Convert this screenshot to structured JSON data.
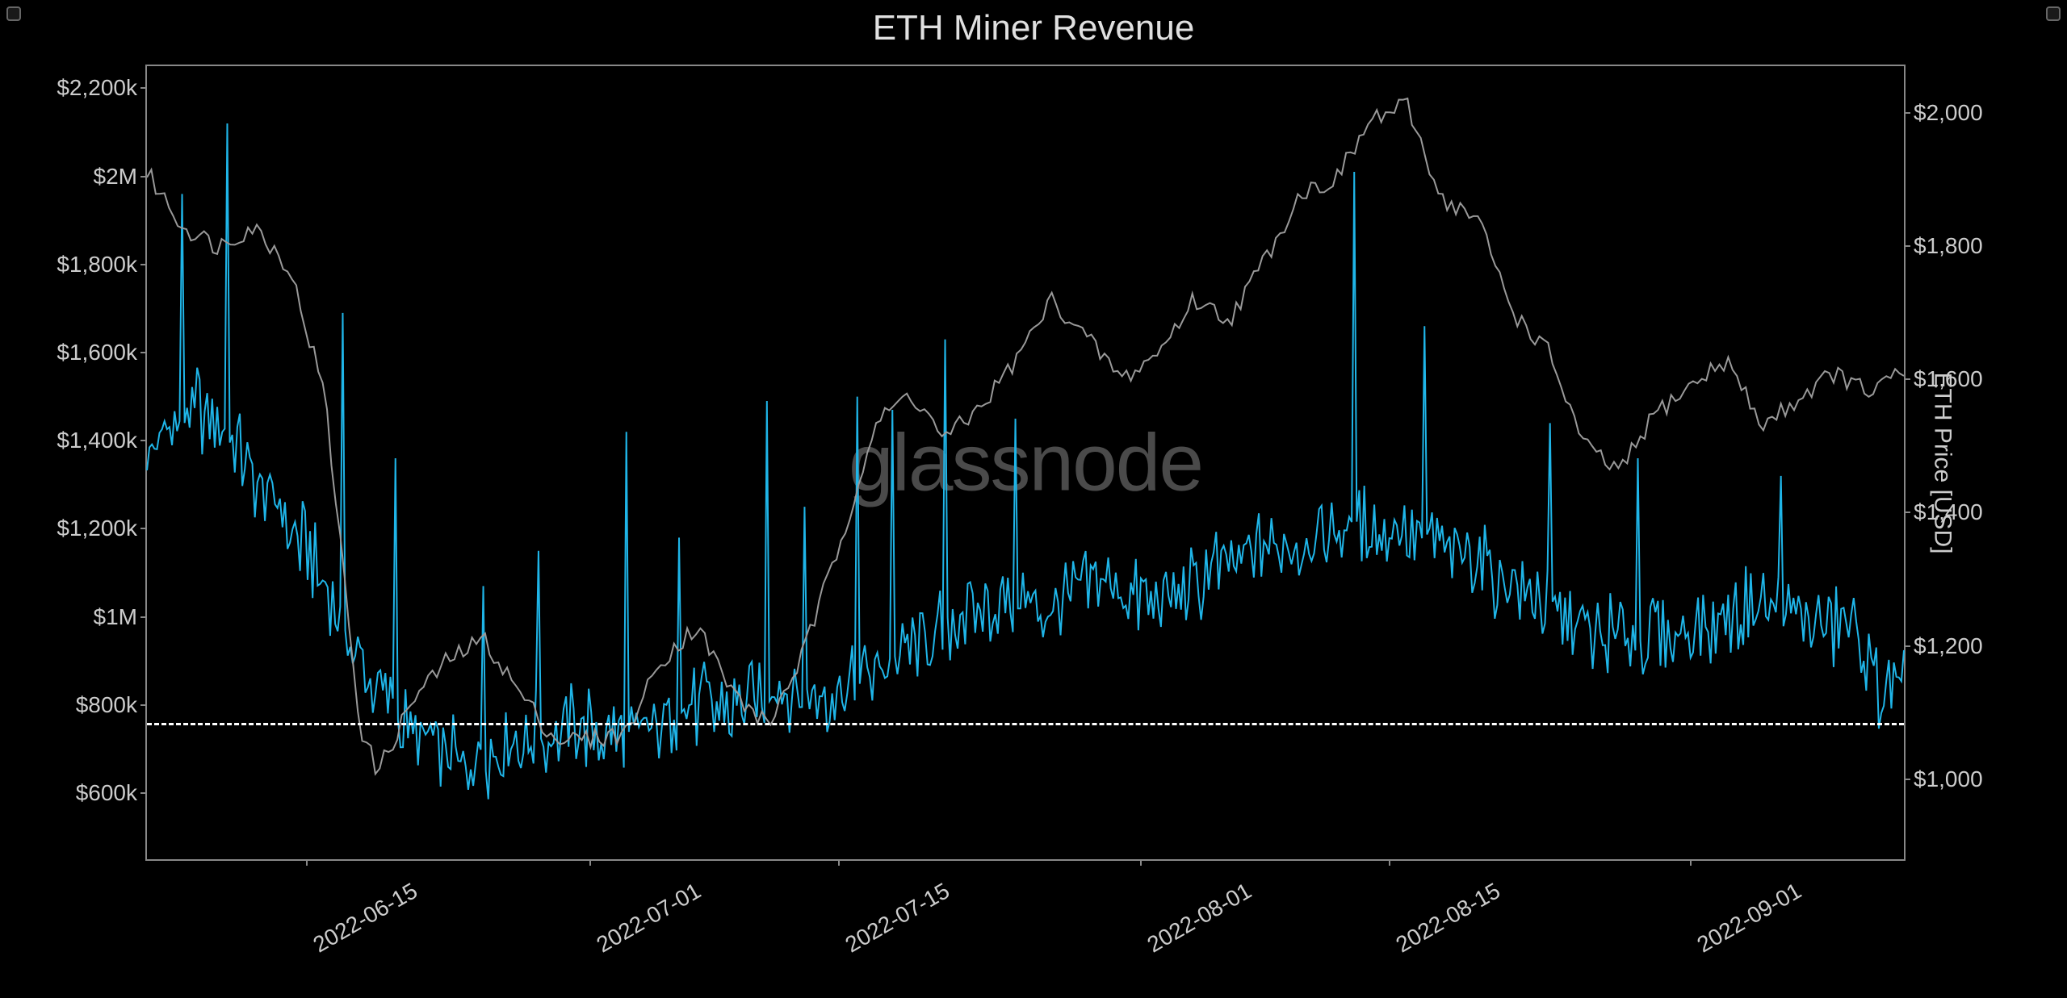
{
  "chart": {
    "title": "ETH Miner Revenue",
    "watermark": "glassnode",
    "background_color": "#000000",
    "plot_border_color": "#888888",
    "text_color": "#cccccc",
    "title_fontsize": 44,
    "label_fontsize": 28,
    "axis_title_fontsize": 30,
    "y_left": {
      "min": 450,
      "max": 2250,
      "ticks": [
        {
          "v": 600,
          "label": "$600k"
        },
        {
          "v": 800,
          "label": "$800k"
        },
        {
          "v": 1000,
          "label": "$1M"
        },
        {
          "v": 1200,
          "label": "$1,200k"
        },
        {
          "v": 1400,
          "label": "$1,400k"
        },
        {
          "v": 1600,
          "label": "$1,600k"
        },
        {
          "v": 1800,
          "label": "$1,800k"
        },
        {
          "v": 2000,
          "label": "$2M"
        },
        {
          "v": 2200,
          "label": "$2,200k"
        }
      ]
    },
    "y_right": {
      "title": "ETH Price [USD]",
      "min": 880,
      "max": 2070,
      "ticks": [
        {
          "v": 1000,
          "label": "$1,000"
        },
        {
          "v": 1200,
          "label": "$1,200"
        },
        {
          "v": 1400,
          "label": "$1,400"
        },
        {
          "v": 1600,
          "label": "$1,600"
        },
        {
          "v": 1800,
          "label": "$1,800"
        },
        {
          "v": 2000,
          "label": "$2,000"
        }
      ]
    },
    "x": {
      "min": 0,
      "max": 99,
      "ticks": [
        {
          "v": 9,
          "label": "2022-06-15"
        },
        {
          "v": 25,
          "label": "2022-07-01"
        },
        {
          "v": 39,
          "label": "2022-07-15"
        },
        {
          "v": 56,
          "label": "2022-08-01"
        },
        {
          "v": 70,
          "label": "2022-08-15"
        },
        {
          "v": 87,
          "label": "2022-09-01"
        }
      ]
    },
    "reference_line": {
      "value": 760,
      "color": "#ffffff",
      "dash": "6,6"
    },
    "series_revenue": {
      "color": "#1fb5e8",
      "line_width": 2,
      "noise_amp": 150,
      "spikes": [
        {
          "x": 2,
          "v": 1960
        },
        {
          "x": 4.5,
          "v": 2120
        },
        {
          "x": 11,
          "v": 1690
        },
        {
          "x": 14,
          "v": 1360
        },
        {
          "x": 19,
          "v": 1070
        },
        {
          "x": 22,
          "v": 1150
        },
        {
          "x": 27,
          "v": 1420
        },
        {
          "x": 30,
          "v": 1180
        },
        {
          "x": 35,
          "v": 1490
        },
        {
          "x": 37,
          "v": 1250
        },
        {
          "x": 40,
          "v": 1500
        },
        {
          "x": 42,
          "v": 1470
        },
        {
          "x": 45,
          "v": 1630
        },
        {
          "x": 49,
          "v": 1450
        },
        {
          "x": 68,
          "v": 2010
        },
        {
          "x": 72,
          "v": 1660
        },
        {
          "x": 79,
          "v": 1440
        },
        {
          "x": 84,
          "v": 1360
        },
        {
          "x": 92,
          "v": 1320
        }
      ],
      "baseline": [
        {
          "x": 0,
          "v": 1380
        },
        {
          "x": 3,
          "v": 1480
        },
        {
          "x": 6,
          "v": 1330
        },
        {
          "x": 9,
          "v": 1150
        },
        {
          "x": 12,
          "v": 900
        },
        {
          "x": 15,
          "v": 720
        },
        {
          "x": 18,
          "v": 660
        },
        {
          "x": 21,
          "v": 720
        },
        {
          "x": 24,
          "v": 760
        },
        {
          "x": 27,
          "v": 720
        },
        {
          "x": 30,
          "v": 800
        },
        {
          "x": 33,
          "v": 780
        },
        {
          "x": 36,
          "v": 850
        },
        {
          "x": 39,
          "v": 820
        },
        {
          "x": 42,
          "v": 900
        },
        {
          "x": 45,
          "v": 980
        },
        {
          "x": 48,
          "v": 1050
        },
        {
          "x": 51,
          "v": 1020
        },
        {
          "x": 54,
          "v": 1080
        },
        {
          "x": 57,
          "v": 1020
        },
        {
          "x": 60,
          "v": 1100
        },
        {
          "x": 63,
          "v": 1150
        },
        {
          "x": 66,
          "v": 1180
        },
        {
          "x": 69,
          "v": 1200
        },
        {
          "x": 72,
          "v": 1180
        },
        {
          "x": 75,
          "v": 1130
        },
        {
          "x": 78,
          "v": 1050
        },
        {
          "x": 81,
          "v": 980
        },
        {
          "x": 84,
          "v": 950
        },
        {
          "x": 87,
          "v": 960
        },
        {
          "x": 90,
          "v": 1020
        },
        {
          "x": 93,
          "v": 1000
        },
        {
          "x": 96,
          "v": 960
        },
        {
          "x": 98,
          "v": 820
        }
      ]
    },
    "series_price": {
      "color": "#999999",
      "line_width": 2,
      "points": [
        {
          "x": 0,
          "v": 1910
        },
        {
          "x": 2,
          "v": 1830
        },
        {
          "x": 4,
          "v": 1800
        },
        {
          "x": 6,
          "v": 1830
        },
        {
          "x": 8,
          "v": 1770
        },
        {
          "x": 10,
          "v": 1580
        },
        {
          "x": 11,
          "v": 1330
        },
        {
          "x": 12,
          "v": 1080
        },
        {
          "x": 13,
          "v": 1010
        },
        {
          "x": 15,
          "v": 1120
        },
        {
          "x": 17,
          "v": 1180
        },
        {
          "x": 19,
          "v": 1210
        },
        {
          "x": 21,
          "v": 1130
        },
        {
          "x": 23,
          "v": 1060
        },
        {
          "x": 25,
          "v": 1060
        },
        {
          "x": 27,
          "v": 1070
        },
        {
          "x": 29,
          "v": 1180
        },
        {
          "x": 31,
          "v": 1230
        },
        {
          "x": 33,
          "v": 1130
        },
        {
          "x": 35,
          "v": 1080
        },
        {
          "x": 37,
          "v": 1190
        },
        {
          "x": 39,
          "v": 1350
        },
        {
          "x": 41,
          "v": 1530
        },
        {
          "x": 43,
          "v": 1580
        },
        {
          "x": 45,
          "v": 1510
        },
        {
          "x": 47,
          "v": 1560
        },
        {
          "x": 49,
          "v": 1630
        },
        {
          "x": 51,
          "v": 1720
        },
        {
          "x": 53,
          "v": 1660
        },
        {
          "x": 55,
          "v": 1600
        },
        {
          "x": 57,
          "v": 1640
        },
        {
          "x": 59,
          "v": 1720
        },
        {
          "x": 61,
          "v": 1690
        },
        {
          "x": 63,
          "v": 1780
        },
        {
          "x": 65,
          "v": 1880
        },
        {
          "x": 67,
          "v": 1900
        },
        {
          "x": 69,
          "v": 1990
        },
        {
          "x": 71,
          "v": 2010
        },
        {
          "x": 73,
          "v": 1870
        },
        {
          "x": 75,
          "v": 1840
        },
        {
          "x": 77,
          "v": 1700
        },
        {
          "x": 79,
          "v": 1640
        },
        {
          "x": 81,
          "v": 1500
        },
        {
          "x": 83,
          "v": 1460
        },
        {
          "x": 85,
          "v": 1550
        },
        {
          "x": 87,
          "v": 1590
        },
        {
          "x": 89,
          "v": 1630
        },
        {
          "x": 91,
          "v": 1530
        },
        {
          "x": 93,
          "v": 1570
        },
        {
          "x": 95,
          "v": 1610
        },
        {
          "x": 97,
          "v": 1580
        },
        {
          "x": 99,
          "v": 1610
        }
      ]
    }
  }
}
